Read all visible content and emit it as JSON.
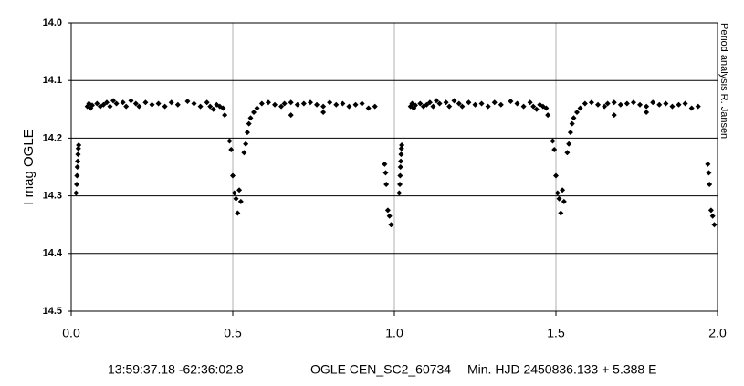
{
  "chart_data": {
    "type": "scatter",
    "y_label": "I mag OGLE",
    "side_note": "Period analysis R. Jansen",
    "footer": [
      "13:59:37.18 -62:36:02.8",
      "OGLE CEN_SC2_60734",
      "Min. HJD 2450836.133 + 5.388 E"
    ],
    "xlim": [
      0,
      2
    ],
    "xticks": [
      {
        "value": 0,
        "label": "0.0"
      },
      0.5,
      {
        "value": 1,
        "label": "1.0"
      },
      1.5,
      {
        "value": 2,
        "label": "2.0"
      }
    ],
    "ylim": [
      14.0,
      14.5
    ],
    "yticks": [
      {
        "value": 14.0,
        "label": "14.0"
      },
      14.1,
      14.2,
      14.3,
      14.4,
      14.5
    ],
    "y_inverted": true,
    "grid": true,
    "series": [
      {
        "color": "#000000",
        "x": [
          0.015,
          0.017,
          0.018,
          0.019,
          0.02,
          0.021,
          0.022,
          0.023,
          0.05,
          0.055,
          0.06,
          0.065,
          0.08,
          0.09,
          0.1,
          0.11,
          0.12,
          0.13,
          0.14,
          0.16,
          0.17,
          0.185,
          0.2,
          0.21,
          0.23,
          0.25,
          0.27,
          0.29,
          0.31,
          0.33,
          0.36,
          0.38,
          0.4,
          0.42,
          0.43,
          0.44,
          0.45,
          0.46,
          0.47,
          0.475,
          0.49,
          0.495,
          0.5,
          0.505,
          0.51,
          0.515,
          0.52,
          0.525,
          0.535,
          0.54,
          0.545,
          0.55,
          0.555,
          0.565,
          0.575,
          0.59,
          0.61,
          0.63,
          0.65,
          0.66,
          0.68,
          0.68,
          0.7,
          0.72,
          0.74,
          0.76,
          0.78,
          0.78,
          0.8,
          0.82,
          0.84,
          0.86,
          0.88,
          0.9,
          0.92,
          0.94,
          0.97,
          0.973,
          0.975,
          0.98,
          0.985,
          0.99,
          1.015,
          1.017,
          1.018,
          1.019,
          1.02,
          1.021,
          1.022,
          1.023,
          1.05,
          1.055,
          1.06,
          1.065,
          1.08,
          1.09,
          1.1,
          1.11,
          1.12,
          1.13,
          1.14,
          1.16,
          1.17,
          1.185,
          1.2,
          1.21,
          1.23,
          1.25,
          1.27,
          1.29,
          1.31,
          1.33,
          1.36,
          1.38,
          1.4,
          1.42,
          1.43,
          1.44,
          1.45,
          1.46,
          1.47,
          1.475,
          1.49,
          1.495,
          1.5,
          1.505,
          1.51,
          1.515,
          1.52,
          1.525,
          1.535,
          1.54,
          1.545,
          1.55,
          1.555,
          1.565,
          1.575,
          1.59,
          1.61,
          1.63,
          1.65,
          1.66,
          1.68,
          1.68,
          1.7,
          1.72,
          1.74,
          1.76,
          1.78,
          1.78,
          1.8,
          1.82,
          1.84,
          1.86,
          1.88,
          1.9,
          1.92,
          1.94,
          1.97,
          1.973,
          1.975,
          1.98,
          1.985,
          1.99
        ],
        "values": [
          14.295,
          14.28,
          14.265,
          14.25,
          14.24,
          14.228,
          14.218,
          14.212,
          14.145,
          14.14,
          14.148,
          14.143,
          14.14,
          14.145,
          14.142,
          14.138,
          14.145,
          14.135,
          14.14,
          14.138,
          14.145,
          14.135,
          14.14,
          14.145,
          14.138,
          14.142,
          14.14,
          14.145,
          14.138,
          14.142,
          14.136,
          14.14,
          14.145,
          14.138,
          14.145,
          14.15,
          14.142,
          14.145,
          14.148,
          14.16,
          14.205,
          14.22,
          14.265,
          14.295,
          14.305,
          14.33,
          14.29,
          14.31,
          14.225,
          14.21,
          14.19,
          14.175,
          14.165,
          14.155,
          14.148,
          14.14,
          14.138,
          14.142,
          14.145,
          14.14,
          14.138,
          14.16,
          14.142,
          14.14,
          14.138,
          14.142,
          14.145,
          14.155,
          14.138,
          14.142,
          14.14,
          14.145,
          14.142,
          14.14,
          14.148,
          14.145,
          14.245,
          14.26,
          14.28,
          14.325,
          14.335,
          14.35,
          14.295,
          14.28,
          14.265,
          14.25,
          14.24,
          14.228,
          14.218,
          14.212,
          14.145,
          14.14,
          14.148,
          14.143,
          14.14,
          14.145,
          14.142,
          14.138,
          14.145,
          14.135,
          14.14,
          14.138,
          14.145,
          14.135,
          14.14,
          14.145,
          14.138,
          14.142,
          14.14,
          14.145,
          14.138,
          14.142,
          14.136,
          14.14,
          14.145,
          14.138,
          14.145,
          14.15,
          14.142,
          14.145,
          14.148,
          14.16,
          14.205,
          14.22,
          14.265,
          14.295,
          14.305,
          14.33,
          14.29,
          14.31,
          14.225,
          14.21,
          14.19,
          14.175,
          14.165,
          14.155,
          14.148,
          14.14,
          14.138,
          14.142,
          14.145,
          14.14,
          14.138,
          14.16,
          14.142,
          14.14,
          14.138,
          14.142,
          14.145,
          14.155,
          14.138,
          14.142,
          14.14,
          14.145,
          14.142,
          14.14,
          14.148,
          14.145,
          14.245,
          14.26,
          14.28,
          14.325,
          14.335,
          14.35
        ]
      }
    ]
  }
}
